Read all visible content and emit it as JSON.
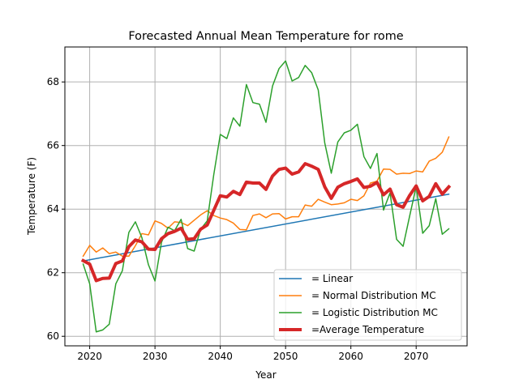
{
  "chart_data": {
    "type": "line",
    "title": "Forecasted Annual Mean Temperature for rome",
    "xlabel": "Year",
    "ylabel": "Temperature (F)",
    "xlim": [
      2016.2,
      2077.8
    ],
    "ylim": [
      59.7,
      69.1
    ],
    "xticks": [
      2020,
      2030,
      2040,
      2050,
      2060,
      2070
    ],
    "yticks": [
      60,
      62,
      64,
      66,
      68
    ],
    "grid": true,
    "legend_position": "lower-right",
    "series": [
      {
        "name": " = Linear",
        "color": "#1f77b4",
        "linewidth": 1.5,
        "x": [
          2019,
          2075
        ],
        "y": [
          62.37,
          64.47
        ]
      },
      {
        "name": " = Normal Distribution MC",
        "color": "#ff7f0e",
        "linewidth": 1.5,
        "x": [
          2019,
          2020,
          2021,
          2022,
          2023,
          2024,
          2025,
          2026,
          2027,
          2028,
          2029,
          2030,
          2031,
          2032,
          2033,
          2034,
          2035,
          2036,
          2037,
          2038,
          2039,
          2040,
          2041,
          2042,
          2043,
          2044,
          2045,
          2046,
          2047,
          2048,
          2049,
          2050,
          2051,
          2052,
          2053,
          2054,
          2055,
          2056,
          2057,
          2058,
          2059,
          2060,
          2061,
          2062,
          2063,
          2064,
          2065,
          2066,
          2067,
          2068,
          2069,
          2070,
          2071,
          2072,
          2073,
          2074,
          2075
        ],
        "y": [
          62.52,
          62.86,
          62.65,
          62.78,
          62.6,
          62.65,
          62.52,
          62.52,
          62.85,
          63.23,
          63.19,
          63.63,
          63.55,
          63.4,
          63.6,
          63.58,
          63.48,
          63.65,
          63.82,
          63.95,
          63.8,
          63.72,
          63.67,
          63.56,
          63.36,
          63.35,
          63.8,
          63.85,
          63.73,
          63.85,
          63.86,
          63.69,
          63.76,
          63.76,
          64.13,
          64.09,
          64.31,
          64.22,
          64.14,
          64.16,
          64.2,
          64.31,
          64.27,
          64.42,
          64.82,
          64.88,
          65.26,
          65.25,
          65.1,
          65.13,
          65.12,
          65.2,
          65.17,
          65.51,
          65.6,
          65.79,
          66.27
        ]
      },
      {
        "name": " = Logistic Distribution MC",
        "color": "#2ca02c",
        "linewidth": 1.5,
        "x": [
          2019,
          2020,
          2021,
          2022,
          2023,
          2024,
          2025,
          2026,
          2027,
          2028,
          2029,
          2030,
          2031,
          2032,
          2033,
          2034,
          2035,
          2036,
          2037,
          2038,
          2039,
          2040,
          2041,
          2042,
          2043,
          2044,
          2045,
          2046,
          2047,
          2048,
          2049,
          2050,
          2051,
          2052,
          2053,
          2054,
          2055,
          2056,
          2057,
          2058,
          2059,
          2060,
          2061,
          2062,
          2063,
          2064,
          2065,
          2066,
          2067,
          2068,
          2069,
          2070,
          2071,
          2072,
          2073,
          2074,
          2075
        ],
        "y": [
          62.27,
          61.65,
          60.14,
          60.2,
          60.38,
          61.65,
          62.06,
          63.27,
          63.6,
          63.1,
          62.25,
          61.74,
          62.96,
          63.43,
          63.32,
          63.68,
          62.76,
          62.68,
          63.37,
          63.63,
          65.08,
          66.35,
          66.22,
          66.87,
          66.61,
          67.92,
          67.35,
          67.3,
          66.73,
          67.87,
          68.42,
          68.66,
          68.03,
          68.14,
          68.52,
          68.29,
          67.75,
          66.08,
          65.13,
          66.11,
          66.4,
          66.48,
          66.67,
          65.65,
          65.28,
          65.75,
          63.97,
          64.51,
          63.05,
          62.83,
          63.78,
          64.71,
          63.24,
          63.48,
          64.33,
          63.21,
          63.38
        ]
      },
      {
        "name": "=Average Temperature",
        "color": "#d62728",
        "linewidth": 4,
        "x": [
          2019,
          2020,
          2021,
          2022,
          2023,
          2024,
          2025,
          2026,
          2027,
          2028,
          2029,
          2030,
          2031,
          2032,
          2033,
          2034,
          2035,
          2036,
          2037,
          2038,
          2039,
          2040,
          2041,
          2042,
          2043,
          2044,
          2045,
          2046,
          2047,
          2048,
          2049,
          2050,
          2051,
          2052,
          2053,
          2054,
          2055,
          2056,
          2057,
          2058,
          2059,
          2060,
          2061,
          2062,
          2063,
          2064,
          2065,
          2066,
          2067,
          2068,
          2069,
          2070,
          2071,
          2072,
          2073,
          2074,
          2075
        ],
        "y": [
          62.38,
          62.27,
          61.75,
          61.82,
          61.83,
          62.29,
          62.37,
          62.82,
          63.03,
          62.97,
          62.74,
          62.73,
          63.07,
          63.23,
          63.3,
          63.4,
          63.05,
          63.07,
          63.37,
          63.5,
          63.96,
          64.42,
          64.38,
          64.56,
          64.46,
          64.85,
          64.82,
          64.82,
          64.62,
          65.04,
          65.25,
          65.29,
          65.1,
          65.17,
          65.43,
          65.35,
          65.25,
          64.7,
          64.34,
          64.69,
          64.8,
          64.87,
          64.95,
          64.68,
          64.72,
          64.84,
          64.45,
          64.63,
          64.14,
          64.06,
          64.43,
          64.73,
          64.26,
          64.4,
          64.8,
          64.47,
          64.7
        ]
      }
    ]
  }
}
